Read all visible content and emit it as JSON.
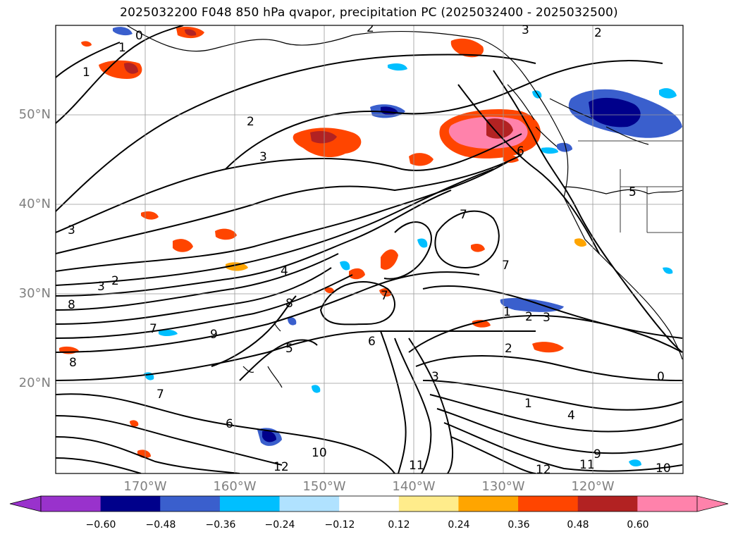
{
  "title": "2025032200 F048 850 hPa qvapor, precipitation PC (2025032400 - 2025032500)",
  "map": {
    "lat_labels": [
      "50°N",
      "40°N",
      "30°N",
      "20°N"
    ],
    "lon_labels": [
      "170°W",
      "160°W",
      "150°W",
      "140°W",
      "130°W",
      "120°W"
    ],
    "contour_labels": [
      "0",
      "1",
      "1",
      "2",
      "2",
      "3",
      "3",
      "2",
      "4",
      "7",
      "6",
      "7",
      "8",
      "9",
      "5",
      "7",
      "3",
      "1",
      "2",
      "3",
      "2",
      "1",
      "4",
      "0",
      "12",
      "11",
      "12",
      "11",
      "10",
      "9",
      "10",
      "8",
      "7",
      "6",
      "5",
      "3",
      "2",
      "3",
      "6",
      "7",
      "8"
    ]
  },
  "colorbar": {
    "colors": [
      "#9932cc",
      "#00008b",
      "#3a5fcd",
      "#00bfff",
      "#b0e2ff",
      "#ffffff",
      "#ffec8b",
      "#ffa500",
      "#ff4500",
      "#b22222",
      "#ff82ab"
    ],
    "labels": [
      "−0.60",
      "−0.48",
      "−0.36",
      "−0.24",
      "−0.12",
      "0.12",
      "0.24",
      "0.36",
      "0.48",
      "0.60"
    ]
  }
}
